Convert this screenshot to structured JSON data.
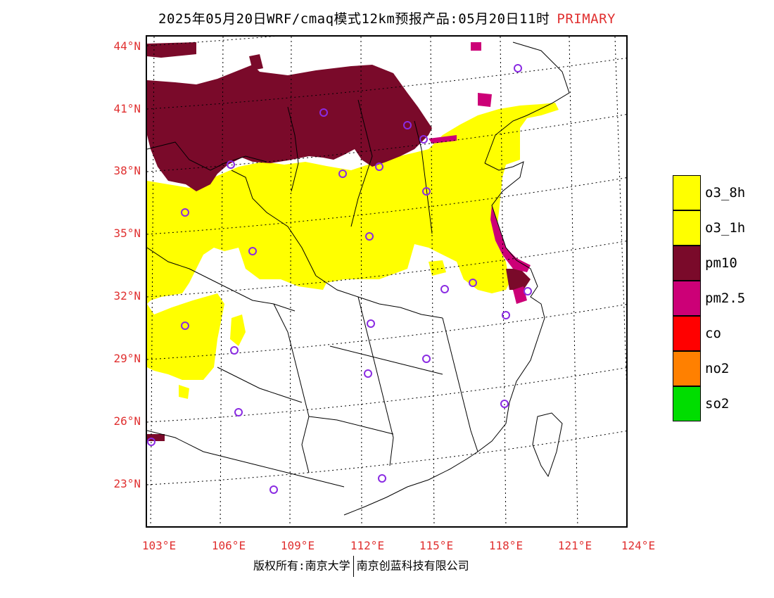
{
  "header": {
    "title": "2025年05月20日WRF/cmaq模式12km预报产品:05月20日11时",
    "tag": "PRIMARY"
  },
  "axes": {
    "lat_labels": [
      "44°N",
      "41°N",
      "38°N",
      "35°N",
      "32°N",
      "29°N",
      "26°N",
      "23°N"
    ],
    "lon_labels": [
      "103°E",
      "106°E",
      "109°E",
      "112°E",
      "115°E",
      "118°E",
      "121°E",
      "124°E"
    ]
  },
  "legend": {
    "items": [
      {
        "label": "o3_8h",
        "color": "#ffff00"
      },
      {
        "label": "o3_1h",
        "color": "#ffff00"
      },
      {
        "label": "pm10",
        "color": "#7a0a2a"
      },
      {
        "label": "pm2.5",
        "color": "#cc0077"
      },
      {
        "label": "co",
        "color": "#ff0000"
      },
      {
        "label": "no2",
        "color": "#ff8000"
      },
      {
        "label": "so2",
        "color": "#00dd00"
      }
    ]
  },
  "colors": {
    "o3": "#ffff00",
    "pm10": "#7a0a2a",
    "pm25": "#cc0077",
    "station": "#8a2be2",
    "graticule": "#000000",
    "label": "#e03030"
  },
  "footer": {
    "copyright": "版权所有:南京大学",
    "company": "南京创蓝科技有限公司"
  }
}
